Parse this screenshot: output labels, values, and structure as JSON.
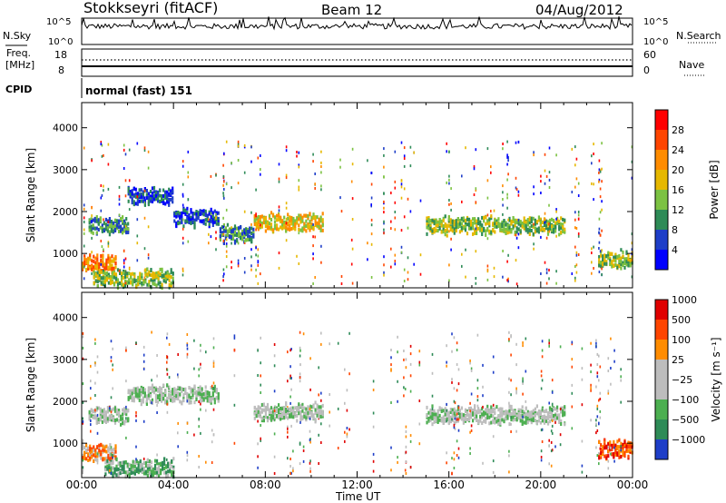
{
  "header": {
    "site": "Stokkseyri (fitACF)",
    "beam": "Beam 12",
    "date": "04/Aug/2012"
  },
  "noise_panel": {
    "left_label": "N.Sky",
    "left_ticks": [
      "10^5",
      "10^0"
    ],
    "right_label": "N.Search",
    "right_ticks": [
      "10^5",
      "10^0"
    ]
  },
  "freq_panel": {
    "left_label_1": "Freq.",
    "left_label_2": "[MHz]",
    "left_ticks": [
      "18",
      "8"
    ],
    "right_label": "Nave",
    "right_ticks": [
      "60",
      "0"
    ]
  },
  "cpid": {
    "label": "CPID",
    "value": "normal (fast) 151"
  },
  "chart_data": [
    {
      "type": "heatmap",
      "title": "",
      "xlabel": "Time UT",
      "ylabel": "Slant Range [km]",
      "x_ticks": [
        "00:00",
        "04:00",
        "08:00",
        "12:00",
        "16:00",
        "20:00",
        "00:00"
      ],
      "xlim_hours": [
        0,
        24
      ],
      "y_ticks": [
        1000,
        2000,
        3000,
        4000
      ],
      "ylim": [
        180,
        4600
      ],
      "colorbar": {
        "label": "Power [dB]",
        "ticks": [
          "4",
          "8",
          "12",
          "16",
          "20",
          "24",
          "28"
        ],
        "colors": [
          "#0000ff",
          "#1e3ec8",
          "#2e8b57",
          "#7cc242",
          "#e6b800",
          "#ff8c00",
          "#ff4500",
          "#ff0000"
        ]
      },
      "features": [
        {
          "start_h": 0.3,
          "end_h": 2.0,
          "range_km": 1700,
          "level": 2
        },
        {
          "start_h": 2.0,
          "end_h": 4.0,
          "range_km": 2400,
          "level": 1
        },
        {
          "start_h": 4.0,
          "end_h": 6.0,
          "range_km": 1900,
          "level": 1
        },
        {
          "start_h": 6.0,
          "end_h": 7.5,
          "range_km": 1500,
          "level": 2
        },
        {
          "start_h": 7.5,
          "end_h": 10.5,
          "range_km": 1780,
          "level": 4
        },
        {
          "start_h": 15.0,
          "end_h": 21.0,
          "range_km": 1700,
          "level": 3
        },
        {
          "start_h": 0.0,
          "end_h": 1.5,
          "range_km": 800,
          "level": 5
        },
        {
          "start_h": 0.5,
          "end_h": 4.0,
          "range_km": 450,
          "level": 3
        },
        {
          "start_h": 22.5,
          "end_h": 24.0,
          "range_km": 900,
          "level": 3
        }
      ]
    },
    {
      "type": "heatmap",
      "title": "",
      "xlabel": "Time UT",
      "ylabel": "Slant Range [km]",
      "x_ticks": [
        "00:00",
        "04:00",
        "08:00",
        "12:00",
        "16:00",
        "20:00",
        "00:00"
      ],
      "xlim_hours": [
        0,
        24
      ],
      "y_ticks": [
        1000,
        2000,
        3000,
        4000
      ],
      "ylim": [
        180,
        4600
      ],
      "colorbar": {
        "label": "Velocity [m s⁻¹]",
        "ticks": [
          "1000",
          "500",
          "100",
          "25",
          "−25",
          "−100",
          "−500",
          "−1000"
        ],
        "colors": [
          "#1e3ec8",
          "#2e8b57",
          "#4caf50",
          "#bdbdbd",
          "#bdbdbd",
          "#ff8c00",
          "#ff4500",
          "#e00000"
        ]
      },
      "features": [
        {
          "start_h": 0.3,
          "end_h": 2.0,
          "range_km": 1700,
          "level": 3
        },
        {
          "start_h": 2.0,
          "end_h": 6.0,
          "range_km": 2200,
          "level": 3
        },
        {
          "start_h": 7.5,
          "end_h": 10.5,
          "range_km": 1780,
          "level": 3
        },
        {
          "start_h": 15.0,
          "end_h": 21.0,
          "range_km": 1700,
          "level": 3
        },
        {
          "start_h": 0.0,
          "end_h": 1.5,
          "range_km": 800,
          "level": 5
        },
        {
          "start_h": 1.0,
          "end_h": 4.0,
          "range_km": 450,
          "level": 2
        },
        {
          "start_h": 22.5,
          "end_h": 24.0,
          "range_km": 900,
          "level": 6
        }
      ]
    }
  ]
}
